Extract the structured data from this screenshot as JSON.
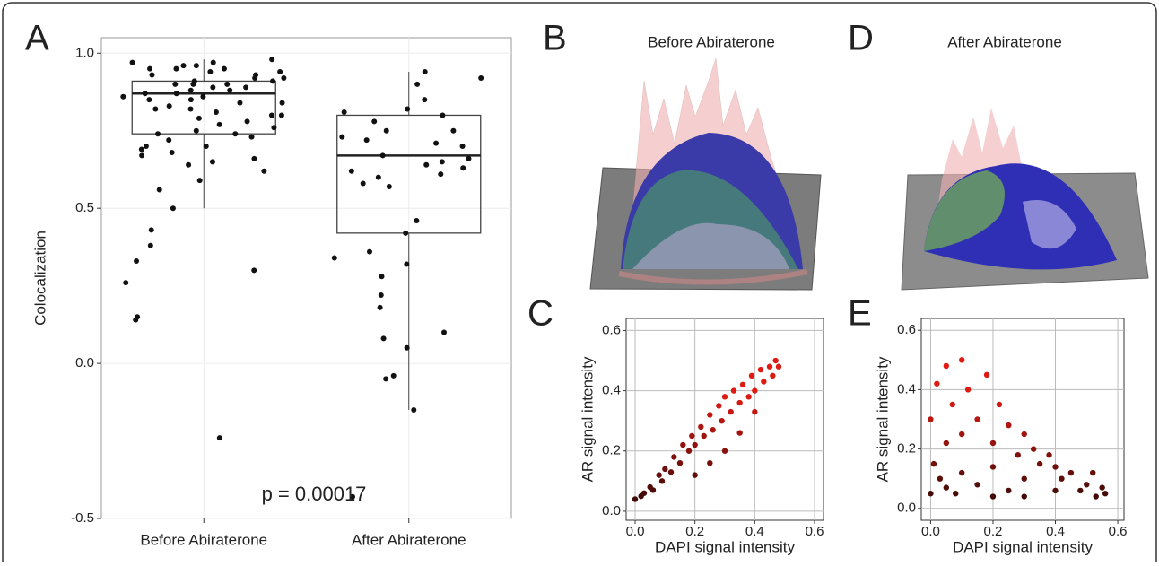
{
  "chart_data": [
    {
      "type": "box",
      "label": "A",
      "ylabel": "Colocalization",
      "annotation": "p = 0.00017",
      "categories": [
        "Before Abiraterone",
        "After Abiraterone"
      ],
      "ylim": [
        -0.5,
        1.05
      ],
      "yticks": [
        {
          "value": -0.5,
          "label": "-0.5"
        },
        {
          "value": 0,
          "label": "0.0"
        },
        {
          "value": 0.5,
          "label": "0.5"
        },
        {
          "value": 1,
          "label": "1.0"
        }
      ],
      "grid": true,
      "color": "#111111",
      "series": [
        {
          "whisker_low": 0.5,
          "q1": 0.74,
          "median": 0.87,
          "q3": 0.91,
          "whisker_high": 0.98,
          "points": [
            0.98,
            0.97,
            0.97,
            0.96,
            0.96,
            0.95,
            0.95,
            0.95,
            0.94,
            0.94,
            0.93,
            0.93,
            0.92,
            0.92,
            0.91,
            0.91,
            0.9,
            0.9,
            0.9,
            0.89,
            0.89,
            0.88,
            0.88,
            0.87,
            0.87,
            0.86,
            0.86,
            0.85,
            0.85,
            0.84,
            0.84,
            0.83,
            0.82,
            0.82,
            0.81,
            0.8,
            0.8,
            0.79,
            0.78,
            0.77,
            0.76,
            0.75,
            0.74,
            0.74,
            0.73,
            0.72,
            0.7,
            0.7,
            0.69,
            0.68,
            0.67,
            0.66,
            0.65,
            0.64,
            0.62,
            0.59,
            0.56,
            0.5,
            0.43,
            0.38,
            0.33,
            0.3,
            0.26,
            0.15,
            0.14,
            -0.24
          ]
        },
        {
          "whisker_low": -0.15,
          "q1": 0.42,
          "median": 0.67,
          "q3": 0.8,
          "whisker_high": 0.94,
          "points": [
            0.94,
            0.92,
            0.9,
            0.85,
            0.82,
            0.81,
            0.8,
            0.78,
            0.75,
            0.75,
            0.73,
            0.72,
            0.71,
            0.7,
            0.67,
            0.66,
            0.65,
            0.64,
            0.63,
            0.62,
            0.61,
            0.6,
            0.58,
            0.57,
            0.46,
            0.42,
            0.36,
            0.34,
            0.32,
            0.28,
            0.22,
            0.18,
            0.1,
            0.08,
            0.05,
            -0.04,
            -0.05,
            -0.15,
            -0.43
          ]
        }
      ]
    },
    {
      "type": "scatter",
      "label": "C",
      "xlabel": "DAPI signal intensity",
      "ylabel": "AR signal intensity",
      "xlim": [
        -0.03,
        0.63
      ],
      "ylim": [
        -0.03,
        0.64
      ],
      "xticks": [
        {
          "value": 0,
          "label": "0.0"
        },
        0.2,
        0.4,
        0.6
      ],
      "yticks": [
        {
          "value": 0,
          "label": "0.0"
        },
        0.2,
        0.4,
        0.6
      ],
      "grid": true,
      "colors": [
        "#1e0805",
        "#e01a12"
      ],
      "x": [
        0.0,
        0.02,
        0.03,
        0.05,
        0.06,
        0.08,
        0.09,
        0.1,
        0.12,
        0.13,
        0.15,
        0.16,
        0.18,
        0.19,
        0.2,
        0.22,
        0.23,
        0.25,
        0.26,
        0.28,
        0.29,
        0.3,
        0.32,
        0.33,
        0.35,
        0.36,
        0.38,
        0.39,
        0.4,
        0.42,
        0.43,
        0.45,
        0.46,
        0.47,
        0.48,
        0.2,
        0.25,
        0.3,
        0.35,
        0.4
      ],
      "y": [
        0.04,
        0.05,
        0.06,
        0.08,
        0.07,
        0.12,
        0.1,
        0.14,
        0.13,
        0.18,
        0.16,
        0.22,
        0.2,
        0.25,
        0.22,
        0.28,
        0.25,
        0.32,
        0.27,
        0.35,
        0.3,
        0.38,
        0.33,
        0.4,
        0.36,
        0.42,
        0.38,
        0.45,
        0.4,
        0.47,
        0.43,
        0.48,
        0.45,
        0.5,
        0.48,
        0.12,
        0.16,
        0.2,
        0.26,
        0.33
      ]
    },
    {
      "type": "scatter",
      "label": "E",
      "xlabel": "DAPI signal intensity",
      "ylabel": "AR signal intensity",
      "xlim": [
        -0.03,
        0.62
      ],
      "ylim": [
        -0.04,
        0.64
      ],
      "xticks": [
        {
          "value": 0,
          "label": "0.0"
        },
        0.2,
        0.4,
        0.6
      ],
      "yticks": [
        {
          "value": 0,
          "label": "0.0"
        },
        0.2,
        0.4,
        0.6
      ],
      "grid": true,
      "colors": [
        "#1e0805",
        "#e01a12"
      ],
      "x": [
        0.0,
        0.0,
        0.01,
        0.02,
        0.03,
        0.05,
        0.05,
        0.07,
        0.08,
        0.1,
        0.1,
        0.12,
        0.15,
        0.15,
        0.18,
        0.2,
        0.2,
        0.22,
        0.25,
        0.25,
        0.28,
        0.3,
        0.3,
        0.33,
        0.35,
        0.38,
        0.4,
        0.4,
        0.42,
        0.45,
        0.48,
        0.5,
        0.52,
        0.53,
        0.55,
        0.56,
        0.1,
        0.2,
        0.3,
        0.05
      ],
      "y": [
        0.05,
        0.3,
        0.15,
        0.42,
        0.1,
        0.48,
        0.22,
        0.35,
        0.05,
        0.5,
        0.25,
        0.4,
        0.3,
        0.08,
        0.45,
        0.22,
        0.04,
        0.35,
        0.28,
        0.06,
        0.18,
        0.25,
        0.04,
        0.2,
        0.15,
        0.18,
        0.06,
        0.14,
        0.1,
        0.12,
        0.06,
        0.08,
        0.12,
        0.04,
        0.07,
        0.05,
        0.12,
        0.14,
        0.1,
        0.07
      ]
    }
  ],
  "renders": [
    {
      "letter": "B",
      "title": "Before Abiraterone"
    },
    {
      "letter": "D",
      "title": "After Abiraterone"
    }
  ]
}
